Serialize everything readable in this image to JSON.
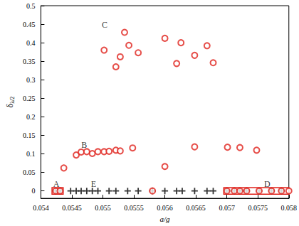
{
  "chart_data": {
    "type": "scatter",
    "xlabel": "a/g",
    "ylabel": "δλ/2",
    "xlim": [
      0.054,
      0.058
    ],
    "xticks": [
      0.054,
      0.0545,
      0.055,
      0.0555,
      0.056,
      0.0565,
      0.057,
      0.0575,
      0.058
    ],
    "ylim": [
      -0.02,
      0.5
    ],
    "yticks": [
      0,
      0.05,
      0.1,
      0.15,
      0.2,
      0.25,
      0.3,
      0.35,
      0.4,
      0.45,
      0.5
    ],
    "grid": false,
    "series": [
      {
        "color": "#e0221b",
        "marker": "circle",
        "x": [
          0.05502,
          0.05521,
          0.05528,
          0.05535,
          0.05542,
          0.05557,
          0.056,
          0.05619,
          0.05626,
          0.05648,
          0.05668,
          0.05678,
          0.05437,
          0.05457,
          0.05465,
          0.05474,
          0.05483,
          0.05492,
          0.05502,
          0.0551,
          0.05521,
          0.05528,
          0.05548,
          0.056,
          0.05648,
          0.05701,
          0.05721,
          0.05748,
          0.05424,
          0.05431,
          0.0558,
          0.057,
          0.05712,
          0.05721,
          0.05732,
          0.05752,
          0.05772,
          0.05788,
          0.058
        ],
        "values": [
          0.38,
          0.335,
          0.362,
          0.428,
          0.393,
          0.373,
          0.412,
          0.344,
          0.4,
          0.366,
          0.392,
          0.346,
          0.062,
          0.097,
          0.105,
          0.106,
          0.101,
          0.106,
          0.106,
          0.107,
          0.11,
          0.108,
          0.116,
          0.066,
          0.119,
          0.118,
          0.117,
          0.11,
          0,
          0,
          0,
          0,
          0,
          0,
          0,
          0,
          0,
          0,
          0
        ]
      },
      {
        "color": "#000000",
        "marker": "plus",
        "x": [
          0.05424,
          0.05431,
          0.05448,
          0.05457,
          0.05465,
          0.05474,
          0.05483,
          0.05492,
          0.0551,
          0.05521,
          0.0554,
          0.05557,
          0.0558,
          0.056,
          0.05619,
          0.05628,
          0.05648,
          0.05668,
          0.05678,
          0.057,
          0.05712,
          0.05721,
          0.05732,
          0.05752,
          0.05772,
          0.05788
        ],
        "values": [
          0,
          0,
          0,
          0,
          0,
          0,
          0,
          0,
          0,
          0,
          0,
          0,
          0,
          0,
          0,
          0,
          0,
          0,
          0,
          0,
          0,
          0,
          0,
          0,
          0,
          0
        ]
      }
    ],
    "annotations": [
      {
        "text": "A",
        "x": 0.05425,
        "y": 0.018
      },
      {
        "text": "B",
        "x": 0.0547,
        "y": 0.124
      },
      {
        "text": "C",
        "x": 0.05503,
        "y": 0.448
      },
      {
        "text": "D",
        "x": 0.05765,
        "y": 0.018
      },
      {
        "text": "E",
        "x": 0.05485,
        "y": 0.018
      }
    ],
    "boxes": [
      {
        "x": [
          0.05418,
          0.05436
        ],
        "y": [
          -0.009,
          0.009
        ],
        "color": "#e0221b"
      },
      {
        "x": [
          0.05695,
          0.058
        ],
        "y": [
          -0.009,
          0.009
        ],
        "color": "#e0221b"
      }
    ]
  }
}
